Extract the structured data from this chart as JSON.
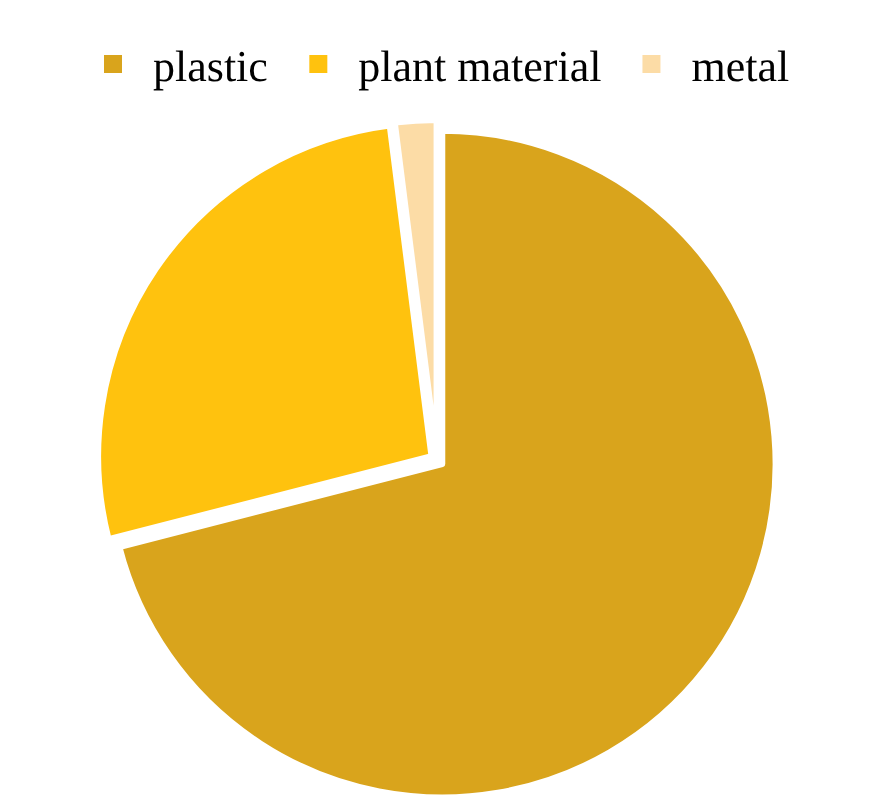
{
  "chart_data": {
    "type": "pie",
    "categories": [
      "plastic",
      "plant material",
      "metal"
    ],
    "values": [
      71,
      27,
      2
    ],
    "colors": [
      "#d9a41c",
      "#ffc20e",
      "#fcdca6"
    ],
    "legend": "top"
  }
}
